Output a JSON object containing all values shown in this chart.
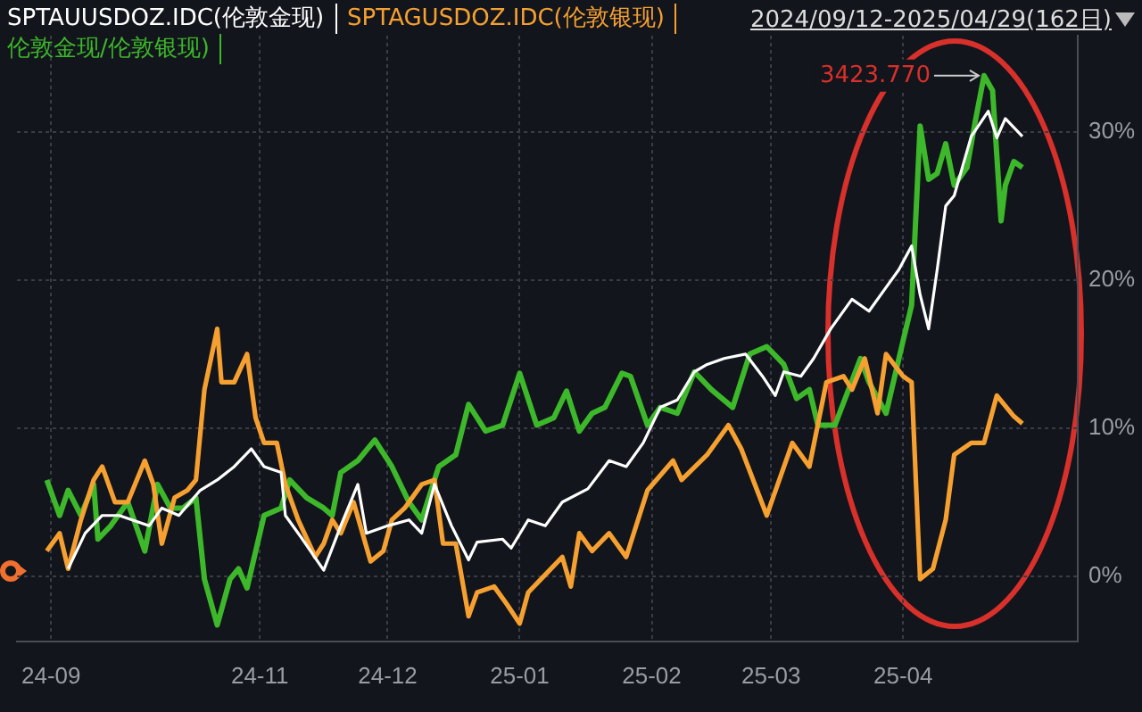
{
  "chart_data": {
    "type": "line",
    "subtitle": "2024/09/12-2025/04/29(162日)",
    "legend": "top left",
    "grid": true,
    "marker": "none",
    "line_style": "solid",
    "xlim": [
      "2024-09-05",
      "2025-05-12"
    ],
    "ylim": [
      -4.4,
      36.5
    ],
    "xticks": [
      {
        "value": "2024-09-13",
        "label": "24-09"
      },
      {
        "value": "2024-11-01",
        "label": "24-11"
      },
      {
        "value": "2024-12-01",
        "label": "24-12"
      },
      {
        "value": "2025-01-01",
        "label": "25-01"
      },
      {
        "value": "2025-02-01",
        "label": "25-02"
      },
      {
        "value": "2025-03-01",
        "label": "25-03"
      },
      {
        "value": "2025-04-01",
        "label": "25-04"
      }
    ],
    "yticks": [
      {
        "value": 0,
        "label": "0%"
      },
      {
        "value": 10,
        "label": "10%"
      },
      {
        "value": 20,
        "label": "20%"
      },
      {
        "value": 30,
        "label": "30%"
      }
    ],
    "annotations": [
      {
        "text": "3423.770",
        "x": "2025-04-20",
        "y": 33.8
      }
    ],
    "series": [
      {
        "name": "SPTAUUSDOZ.IDC(伦敦金现)",
        "color": "#ffffff",
        "x": [
          "2024-09-17",
          "2024-09-21",
          "2024-09-25",
          "2024-09-29",
          "2024-10-06",
          "2024-10-09",
          "2024-10-13",
          "2024-10-18",
          "2024-10-22",
          "2024-10-26",
          "2024-10-30",
          "2024-11-02",
          "2024-11-06",
          "2024-11-07",
          "2024-11-11",
          "2024-11-16",
          "2024-11-20",
          "2024-11-24",
          "2024-11-26",
          "2024-12-01",
          "2024-12-06",
          "2024-12-09",
          "2024-12-12",
          "2024-12-16",
          "2024-12-20",
          "2024-12-22",
          "2024-12-28",
          "2024-12-30",
          "2025-01-03",
          "2025-01-07",
          "2025-01-11",
          "2025-01-17",
          "2025-01-22",
          "2025-01-26",
          "2025-01-30",
          "2025-02-03",
          "2025-02-07",
          "2025-02-11",
          "2025-02-14",
          "2025-02-18",
          "2025-02-23",
          "2025-02-27",
          "2025-03-02",
          "2025-03-04",
          "2025-03-08",
          "2025-03-11",
          "2025-03-15",
          "2025-03-20",
          "2025-03-24",
          "2025-03-28",
          "2025-03-31",
          "2025-04-03",
          "2025-04-05",
          "2025-04-07",
          "2025-04-09",
          "2025-04-11",
          "2025-04-13",
          "2025-04-17",
          "2025-04-21",
          "2025-04-23",
          "2025-04-25",
          "2025-04-27",
          "2025-04-29"
        ],
        "values": [
          0.5,
          2.9,
          4.1,
          4.1,
          3.4,
          4.6,
          4.1,
          5.8,
          6.5,
          7.4,
          8.6,
          7.4,
          7.0,
          4.1,
          2.5,
          0.4,
          3.4,
          6.2,
          2.9,
          3.4,
          3.8,
          2.9,
          6.2,
          3.4,
          1.1,
          2.3,
          2.5,
          1.9,
          3.8,
          3.4,
          5.0,
          5.9,
          7.8,
          7.4,
          9.0,
          11.4,
          11.9,
          13.8,
          14.3,
          14.7,
          15.0,
          13.5,
          12.2,
          13.8,
          13.5,
          14.7,
          16.7,
          18.7,
          17.9,
          19.5,
          20.7,
          22.3,
          19.0,
          16.7,
          20.7,
          25.0,
          25.7,
          29.7,
          31.4,
          29.6,
          30.9,
          30.3,
          29.7
        ]
      },
      {
        "name": "SPTAGUSDOZ.IDC(伦敦银现)",
        "color": "#f5a030",
        "x": [
          "2024-09-12",
          "2024-09-15",
          "2024-09-17",
          "2024-09-20",
          "2024-09-23",
          "2024-09-25",
          "2024-09-28",
          "2024-10-01",
          "2024-10-05",
          "2024-10-07",
          "2024-10-09",
          "2024-10-12",
          "2024-10-15",
          "2024-10-17",
          "2024-10-19",
          "2024-10-22",
          "2024-10-23",
          "2024-10-26",
          "2024-10-29",
          "2024-10-31",
          "2024-11-02",
          "2024-11-05",
          "2024-11-07",
          "2024-11-10",
          "2024-11-14",
          "2024-11-16",
          "2024-11-18",
          "2024-11-20",
          "2024-11-23",
          "2024-11-27",
          "2024-11-30",
          "2024-12-02",
          "2024-12-05",
          "2024-12-09",
          "2024-12-12",
          "2024-12-14",
          "2024-12-17",
          "2024-12-20",
          "2024-12-22",
          "2024-12-26",
          "2024-12-29",
          "2025-01-01",
          "2025-01-03",
          "2025-01-07",
          "2025-01-11",
          "2025-01-13",
          "2025-01-15",
          "2025-01-18",
          "2025-01-22",
          "2025-01-26",
          "2025-01-31",
          "2025-02-06",
          "2025-02-08",
          "2025-02-14",
          "2025-02-19",
          "2025-02-22",
          "2025-02-28",
          "2025-03-06",
          "2025-03-10",
          "2025-03-14",
          "2025-03-18",
          "2025-03-20",
          "2025-03-23",
          "2025-03-26",
          "2025-03-28",
          "2025-04-01",
          "2025-04-03",
          "2025-04-05",
          "2025-04-08",
          "2025-04-11",
          "2025-04-13",
          "2025-04-17",
          "2025-04-20",
          "2025-04-23",
          "2025-04-27",
          "2025-04-29"
        ],
        "values": [
          1.7,
          2.9,
          0.5,
          3.8,
          6.5,
          7.4,
          5.0,
          5.0,
          7.8,
          6.2,
          2.2,
          5.3,
          5.8,
          6.5,
          12.6,
          16.7,
          13.1,
          13.1,
          15.0,
          10.7,
          9.0,
          9.0,
          6.2,
          3.8,
          1.3,
          2.2,
          3.8,
          2.9,
          5.0,
          1.0,
          1.7,
          3.8,
          4.6,
          6.2,
          6.5,
          2.2,
          2.2,
          -2.7,
          -1.1,
          -0.7,
          -1.9,
          -3.2,
          -1.1,
          0.1,
          1.3,
          -0.7,
          2.9,
          1.7,
          2.9,
          1.3,
          5.8,
          7.8,
          6.5,
          8.2,
          10.2,
          8.6,
          4.1,
          9.0,
          7.4,
          13.1,
          13.5,
          12.6,
          14.7,
          11.0,
          15.0,
          13.5,
          13.1,
          -0.2,
          0.5,
          3.8,
          8.2,
          9.0,
          9.0,
          12.2,
          10.8,
          10.3
        ]
      },
      {
        "name": "伦敦金现/伦敦银现)",
        "color": "#3cb82a",
        "x": [
          "2024-09-12",
          "2024-09-15",
          "2024-09-17",
          "2024-09-20",
          "2024-09-23",
          "2024-09-24",
          "2024-09-27",
          "2024-10-01",
          "2024-10-05",
          "2024-10-08",
          "2024-10-11",
          "2024-10-14",
          "2024-10-17",
          "2024-10-19",
          "2024-10-22",
          "2024-10-25",
          "2024-10-27",
          "2024-10-29",
          "2024-11-02",
          "2024-11-06",
          "2024-11-08",
          "2024-11-12",
          "2024-11-16",
          "2024-11-18",
          "2024-11-20",
          "2024-11-24",
          "2024-11-28",
          "2024-12-02",
          "2024-12-06",
          "2024-12-09",
          "2024-12-13",
          "2024-12-17",
          "2024-12-20",
          "2024-12-24",
          "2024-12-28",
          "2025-01-01",
          "2025-01-05",
          "2025-01-09",
          "2025-01-12",
          "2025-01-15",
          "2025-01-18",
          "2025-01-21",
          "2025-01-25",
          "2025-01-27",
          "2025-01-31",
          "2025-02-03",
          "2025-02-07",
          "2025-02-11",
          "2025-02-15",
          "2025-02-20",
          "2025-02-24",
          "2025-02-28",
          "2025-03-04",
          "2025-03-07",
          "2025-03-10",
          "2025-03-12",
          "2025-03-16",
          "2025-03-22",
          "2025-03-24",
          "2025-03-28",
          "2025-04-01",
          "2025-04-03",
          "2025-04-05",
          "2025-04-07",
          "2025-04-09",
          "2025-04-11",
          "2025-04-13",
          "2025-04-16",
          "2025-04-18",
          "2025-04-20",
          "2025-04-22",
          "2025-04-23",
          "2025-04-24",
          "2025-04-25",
          "2025-04-27",
          "2025-04-29"
        ],
        "values": [
          6.5,
          4.1,
          5.8,
          4.1,
          6.2,
          2.5,
          3.4,
          5.0,
          1.7,
          6.2,
          4.6,
          4.6,
          5.3,
          -0.2,
          -3.3,
          -0.2,
          0.5,
          -0.8,
          4.1,
          4.6,
          6.5,
          5.3,
          4.6,
          4.1,
          7.0,
          7.8,
          9.2,
          7.4,
          5.0,
          3.8,
          7.4,
          8.2,
          11.6,
          9.8,
          10.2,
          13.7,
          10.2,
          10.7,
          12.5,
          9.8,
          11.0,
          11.4,
          13.7,
          13.5,
          10.2,
          11.4,
          11.0,
          13.8,
          12.6,
          11.4,
          15.0,
          15.5,
          14.3,
          12.0,
          12.6,
          10.2,
          10.2,
          14.7,
          13.1,
          11.0,
          15.9,
          18.3,
          30.4,
          26.8,
          27.2,
          29.2,
          26.4,
          27.6,
          30.8,
          33.8,
          32.8,
          28.4,
          24.0,
          26.4,
          28.0,
          27.6
        ]
      }
    ]
  }
}
